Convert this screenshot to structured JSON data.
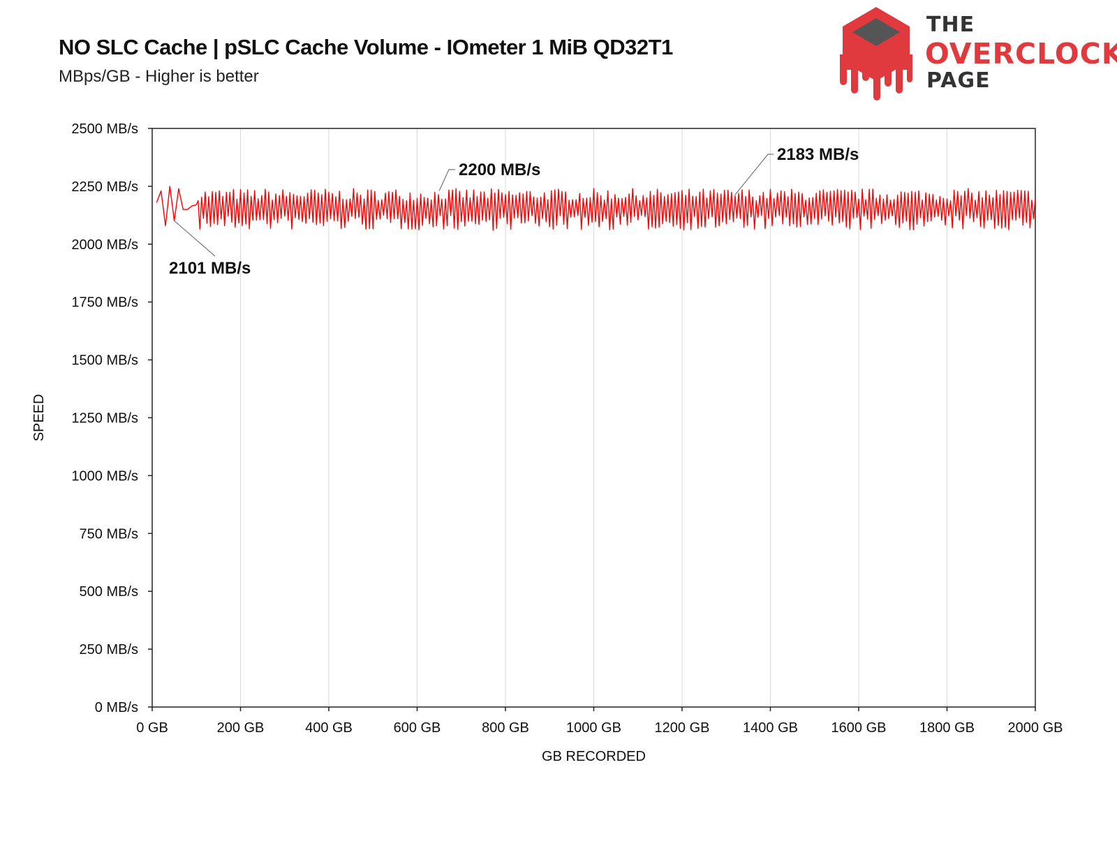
{
  "chart_data": {
    "type": "line",
    "title": "NO SLC Cache | pSLC Cache Volume - IOmeter 1 MiB QD32T1",
    "subtitle": "MBps/GB - Higher is better",
    "xlabel": "GB RECORDED",
    "ylabel": "SPEED",
    "xlim": [
      0,
      2000
    ],
    "ylim": [
      0,
      2500
    ],
    "x_ticks": [
      "0 GB",
      "200 GB",
      "400 GB",
      "600 GB",
      "800 GB",
      "1000 GB",
      "1200 GB",
      "1400 GB",
      "1600 GB",
      "1800 GB",
      "2000 GB"
    ],
    "y_ticks": [
      "0 MB/s",
      "250 MB/s",
      "500 MB/s",
      "750 MB/s",
      "1000 MB/s",
      "1250 MB/s",
      "1500 MB/s",
      "1750 MB/s",
      "2000 MB/s",
      "2250 MB/s",
      "2500 MB/s"
    ],
    "grid": "vertical",
    "line_color": "#ff0000",
    "series": [
      {
        "points_start": [
          [
            10,
            2180
          ],
          [
            20,
            2230
          ],
          [
            30,
            2080
          ],
          [
            40,
            2250
          ],
          [
            50,
            2101
          ],
          [
            60,
            2240
          ],
          [
            70,
            2150
          ],
          [
            80,
            2150
          ],
          [
            90,
            2165
          ],
          [
            100,
            2170
          ]
        ],
        "oscillation": {
          "x_start": 100,
          "x_end": 2000,
          "step": 4,
          "center": 2160,
          "min": 2060,
          "max": 2240
        }
      }
    ],
    "annotations": [
      {
        "text": "2101 MB/s",
        "x": 50,
        "y": 2101
      },
      {
        "text": "2200 MB/s",
        "x": 650,
        "y": 2200
      },
      {
        "text": "2183 MB/s",
        "x": 1320,
        "y": 2183
      }
    ]
  },
  "logo": {
    "line1": "THE",
    "line2": "OVERCLOCK",
    "line3": "PAGE",
    "accent": "#e03a3e",
    "dark": "#333333"
  }
}
